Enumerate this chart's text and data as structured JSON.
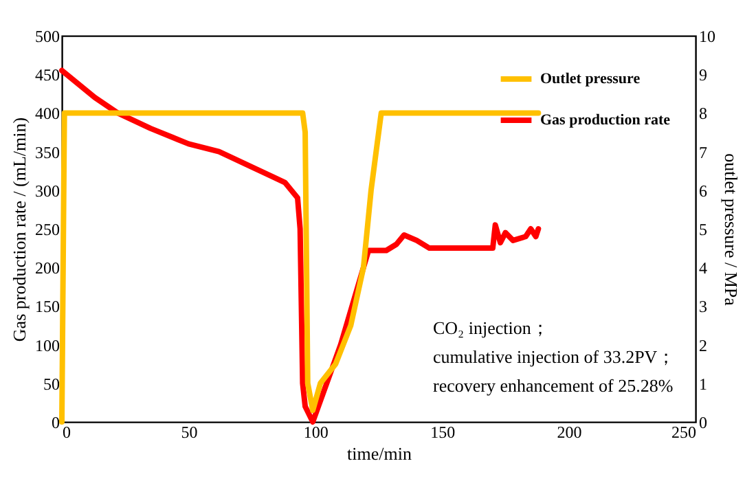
{
  "chart_data": {
    "type": "line",
    "xlabel": "time/min",
    "ylabel": "Gas production rate / (mL/min)",
    "y2label": "outlet pressure / MPa",
    "xlim": [
      0,
      250
    ],
    "xticks": [
      0,
      50,
      100,
      150,
      200,
      250
    ],
    "ylim": [
      0,
      500
    ],
    "yticks": [
      0,
      50,
      100,
      150,
      200,
      250,
      300,
      350,
      400,
      450,
      500
    ],
    "y2lim": [
      0,
      10
    ],
    "y2ticks": [
      0,
      1,
      2,
      3,
      4,
      5,
      6,
      7,
      8,
      9,
      10
    ],
    "grid": false,
    "legend": "top right",
    "marker": "none",
    "line_style": "solid",
    "annotations": [
      "CO₂ injection；",
      "cumulative injection of 33.2PV；",
      "recovery enhancement of 25.28%"
    ],
    "series": [
      {
        "name": "Outlet pressure",
        "color": "#ffc000",
        "axis": "y2",
        "x": [
          0,
          1,
          10,
          30,
          50,
          70,
          90,
          95,
          96,
          97,
          99,
          102,
          108,
          114,
          119,
          122,
          124,
          126,
          140,
          160,
          188
        ],
        "values": [
          0,
          8,
          8,
          8,
          8,
          8,
          8,
          8,
          7.5,
          1,
          0.3,
          1,
          1.5,
          2.5,
          4,
          6,
          7,
          8,
          8,
          8,
          8
        ]
      },
      {
        "name": "Gas production rate",
        "color": "#ff0000",
        "x": [
          0,
          13,
          22,
          35,
          50,
          62,
          75,
          88,
          93,
          94,
          95,
          96,
          99,
          110,
          121,
          128,
          132,
          135,
          140,
          145,
          170,
          171,
          173,
          175,
          178,
          183,
          185,
          187,
          188
        ],
        "values": [
          455,
          420,
          400,
          380,
          360,
          350,
          330,
          310,
          290,
          250,
          50,
          20,
          0,
          100,
          222,
          222,
          230,
          242,
          235,
          225,
          225,
          255,
          232,
          245,
          235,
          240,
          250,
          240,
          250
        ]
      }
    ]
  }
}
